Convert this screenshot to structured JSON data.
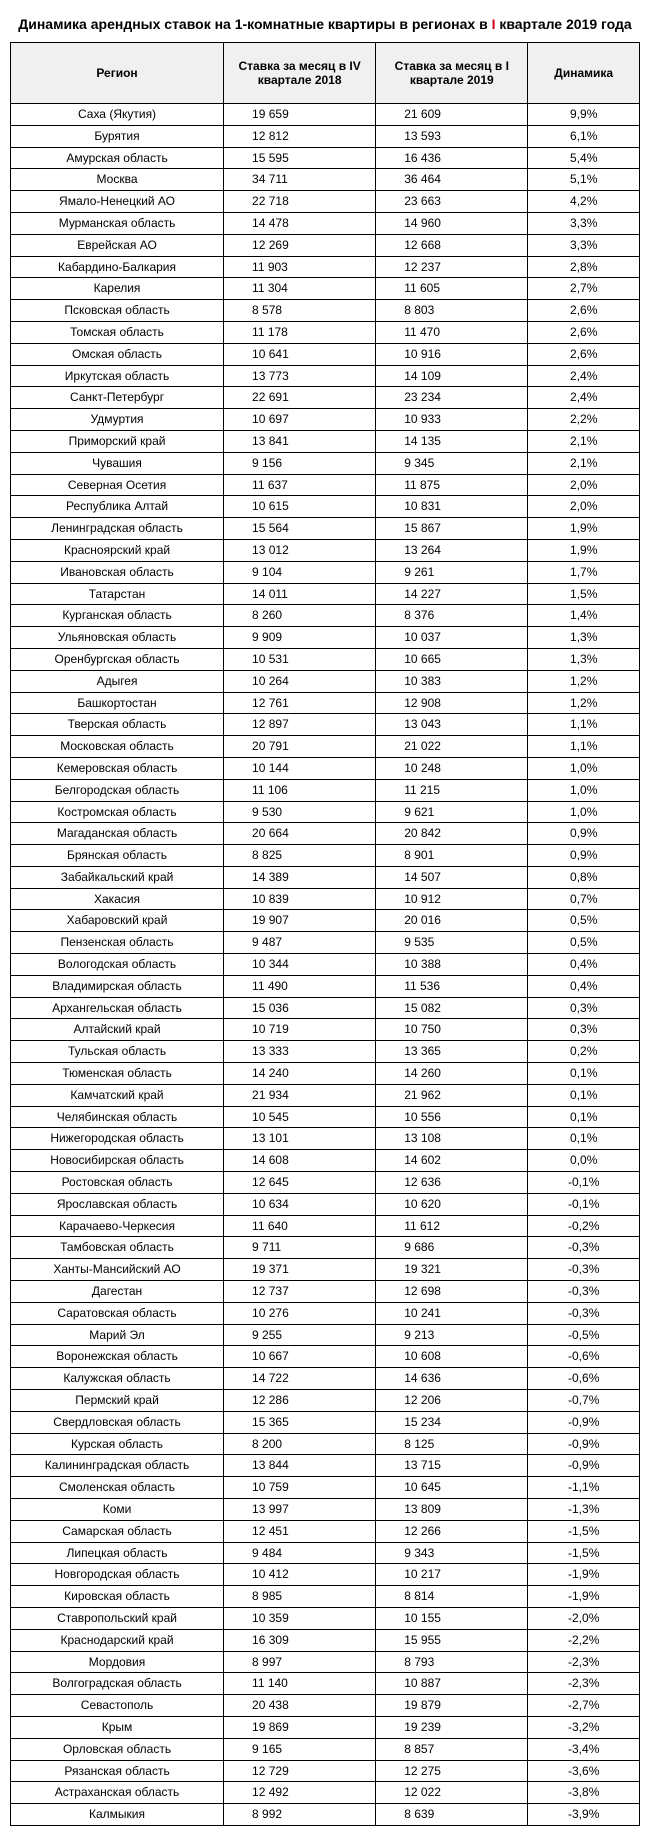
{
  "title_before": "Динамика арендных ставок на 1-комнатные квартиры в регионах в ",
  "title_red": "I",
  "title_after": " квартале 2019 года",
  "columns": {
    "region": "Регион",
    "q4": "Ставка за месяц в IV квартале 2018",
    "q1": "Ставка за месяц в I квартале 2019",
    "dyn": "Динамика"
  },
  "rows": [
    {
      "region": "Саха (Якутия)",
      "q4": "19 659",
      "q1": "21 609",
      "dyn": "9,9%"
    },
    {
      "region": "Бурятия",
      "q4": "12 812",
      "q1": "13 593",
      "dyn": "6,1%"
    },
    {
      "region": "Амурская область",
      "q4": "15 595",
      "q1": "16 436",
      "dyn": "5,4%"
    },
    {
      "region": "Москва",
      "q4": "34 711",
      "q1": "36 464",
      "dyn": "5,1%"
    },
    {
      "region": "Ямало-Ненецкий АО",
      "q4": "22 718",
      "q1": "23 663",
      "dyn": "4,2%"
    },
    {
      "region": "Мурманская область",
      "q4": "14 478",
      "q1": "14 960",
      "dyn": "3,3%"
    },
    {
      "region": "Еврейская АО",
      "q4": "12 269",
      "q1": "12 668",
      "dyn": "3,3%"
    },
    {
      "region": "Кабардино-Балкария",
      "q4": "11 903",
      "q1": "12 237",
      "dyn": "2,8%"
    },
    {
      "region": "Карелия",
      "q4": "11 304",
      "q1": "11 605",
      "dyn": "2,7%"
    },
    {
      "region": "Псковская область",
      "q4": "8 578",
      "q1": "8 803",
      "dyn": "2,6%"
    },
    {
      "region": "Томская область",
      "q4": "11 178",
      "q1": "11 470",
      "dyn": "2,6%"
    },
    {
      "region": "Омская область",
      "q4": "10 641",
      "q1": "10 916",
      "dyn": "2,6%"
    },
    {
      "region": "Иркутская область",
      "q4": "13 773",
      "q1": "14 109",
      "dyn": "2,4%"
    },
    {
      "region": "Санкт-Петербург",
      "q4": "22 691",
      "q1": "23 234",
      "dyn": "2,4%"
    },
    {
      "region": "Удмуртия",
      "q4": "10 697",
      "q1": "10 933",
      "dyn": "2,2%"
    },
    {
      "region": "Приморский край",
      "q4": "13 841",
      "q1": "14 135",
      "dyn": "2,1%"
    },
    {
      "region": "Чувашия",
      "q4": "9 156",
      "q1": "9 345",
      "dyn": "2,1%"
    },
    {
      "region": "Северная Осетия",
      "q4": "11 637",
      "q1": "11 875",
      "dyn": "2,0%"
    },
    {
      "region": "Республика Алтай",
      "q4": "10 615",
      "q1": "10 831",
      "dyn": "2,0%"
    },
    {
      "region": "Ленинградская область",
      "q4": "15 564",
      "q1": "15 867",
      "dyn": "1,9%"
    },
    {
      "region": "Красноярский край",
      "q4": "13 012",
      "q1": "13 264",
      "dyn": "1,9%"
    },
    {
      "region": "Ивановская область",
      "q4": "9 104",
      "q1": "9 261",
      "dyn": "1,7%"
    },
    {
      "region": "Татарстан",
      "q4": "14 011",
      "q1": "14 227",
      "dyn": "1,5%"
    },
    {
      "region": "Курганская область",
      "q4": "8 260",
      "q1": "8 376",
      "dyn": "1,4%"
    },
    {
      "region": "Ульяновская область",
      "q4": "9 909",
      "q1": "10 037",
      "dyn": "1,3%"
    },
    {
      "region": "Оренбургская область",
      "q4": "10 531",
      "q1": "10 665",
      "dyn": "1,3%"
    },
    {
      "region": "Адыгея",
      "q4": "10 264",
      "q1": "10 383",
      "dyn": "1,2%"
    },
    {
      "region": "Башкортостан",
      "q4": "12 761",
      "q1": "12 908",
      "dyn": "1,2%"
    },
    {
      "region": "Тверская область",
      "q4": "12 897",
      "q1": "13 043",
      "dyn": "1,1%"
    },
    {
      "region": "Московская область",
      "q4": "20 791",
      "q1": "21 022",
      "dyn": "1,1%"
    },
    {
      "region": "Кемеровская область",
      "q4": "10 144",
      "q1": "10 248",
      "dyn": "1,0%"
    },
    {
      "region": "Белгородская область",
      "q4": "11 106",
      "q1": "11 215",
      "dyn": "1,0%"
    },
    {
      "region": "Костромская область",
      "q4": "9 530",
      "q1": "9 621",
      "dyn": "1,0%"
    },
    {
      "region": "Магаданская область",
      "q4": "20 664",
      "q1": "20 842",
      "dyn": "0,9%"
    },
    {
      "region": "Брянская область",
      "q4": "8 825",
      "q1": "8 901",
      "dyn": "0,9%"
    },
    {
      "region": "Забайкальский край",
      "q4": "14 389",
      "q1": "14 507",
      "dyn": "0,8%"
    },
    {
      "region": "Хакасия",
      "q4": "10 839",
      "q1": "10 912",
      "dyn": "0,7%"
    },
    {
      "region": "Хабаровский край",
      "q4": "19 907",
      "q1": "20 016",
      "dyn": "0,5%"
    },
    {
      "region": "Пензенская область",
      "q4": "9 487",
      "q1": "9 535",
      "dyn": "0,5%"
    },
    {
      "region": "Вологодская область",
      "q4": "10 344",
      "q1": "10 388",
      "dyn": "0,4%"
    },
    {
      "region": "Владимирская область",
      "q4": "11 490",
      "q1": "11 536",
      "dyn": "0,4%"
    },
    {
      "region": "Архангельская область",
      "q4": "15 036",
      "q1": "15 082",
      "dyn": "0,3%"
    },
    {
      "region": "Алтайский край",
      "q4": "10 719",
      "q1": "10 750",
      "dyn": "0,3%"
    },
    {
      "region": "Тульская область",
      "q4": "13 333",
      "q1": "13 365",
      "dyn": "0,2%"
    },
    {
      "region": "Тюменская область",
      "q4": "14 240",
      "q1": "14 260",
      "dyn": "0,1%"
    },
    {
      "region": "Камчатский край",
      "q4": "21 934",
      "q1": "21 962",
      "dyn": "0,1%"
    },
    {
      "region": "Челябинская область",
      "q4": "10 545",
      "q1": "10 556",
      "dyn": "0,1%"
    },
    {
      "region": "Нижегородская область",
      "q4": "13 101",
      "q1": "13 108",
      "dyn": "0,1%"
    },
    {
      "region": "Новосибирская область",
      "q4": "14 608",
      "q1": "14 602",
      "dyn": "0,0%"
    },
    {
      "region": "Ростовская область",
      "q4": "12 645",
      "q1": "12 636",
      "dyn": "-0,1%"
    },
    {
      "region": "Ярославская область",
      "q4": "10 634",
      "q1": "10 620",
      "dyn": "-0,1%"
    },
    {
      "region": "Карачаево-Черкесия",
      "q4": "11 640",
      "q1": "11 612",
      "dyn": "-0,2%"
    },
    {
      "region": "Тамбовская область",
      "q4": "9 711",
      "q1": "9 686",
      "dyn": "-0,3%"
    },
    {
      "region": "Ханты-Мансийский АО",
      "q4": "19 371",
      "q1": "19 321",
      "dyn": "-0,3%"
    },
    {
      "region": "Дагестан",
      "q4": "12 737",
      "q1": "12 698",
      "dyn": "-0,3%"
    },
    {
      "region": "Саратовская область",
      "q4": "10 276",
      "q1": "10 241",
      "dyn": "-0,3%"
    },
    {
      "region": "Марий Эл",
      "q4": "9 255",
      "q1": "9 213",
      "dyn": "-0,5%"
    },
    {
      "region": "Воронежская область",
      "q4": "10 667",
      "q1": "10 608",
      "dyn": "-0,6%"
    },
    {
      "region": "Калужская область",
      "q4": "14 722",
      "q1": "14 636",
      "dyn": "-0,6%"
    },
    {
      "region": "Пермский край",
      "q4": "12 286",
      "q1": "12 206",
      "dyn": "-0,7%"
    },
    {
      "region": "Свердловская область",
      "q4": "15 365",
      "q1": "15 234",
      "dyn": "-0,9%"
    },
    {
      "region": "Курская область",
      "q4": "8 200",
      "q1": "8 125",
      "dyn": "-0,9%"
    },
    {
      "region": "Калининградская область",
      "q4": "13 844",
      "q1": "13 715",
      "dyn": "-0,9%"
    },
    {
      "region": "Смоленская область",
      "q4": "10 759",
      "q1": "10 645",
      "dyn": "-1,1%"
    },
    {
      "region": "Коми",
      "q4": "13 997",
      "q1": "13 809",
      "dyn": "-1,3%"
    },
    {
      "region": "Самарская область",
      "q4": "12 451",
      "q1": "12 266",
      "dyn": "-1,5%"
    },
    {
      "region": "Липецкая область",
      "q4": "9 484",
      "q1": "9 343",
      "dyn": "-1,5%"
    },
    {
      "region": "Новгородская область",
      "q4": "10 412",
      "q1": "10 217",
      "dyn": "-1,9%"
    },
    {
      "region": "Кировская область",
      "q4": "8 985",
      "q1": "8 814",
      "dyn": "-1,9%"
    },
    {
      "region": "Ставропольский край",
      "q4": "10 359",
      "q1": "10 155",
      "dyn": "-2,0%"
    },
    {
      "region": "Краснодарский край",
      "q4": "16 309",
      "q1": "15 955",
      "dyn": "-2,2%"
    },
    {
      "region": "Мордовия",
      "q4": "8 997",
      "q1": "8 793",
      "dyn": "-2,3%"
    },
    {
      "region": "Волгоградская область",
      "q4": "11 140",
      "q1": "10 887",
      "dyn": "-2,3%"
    },
    {
      "region": "Севастополь",
      "q4": "20 438",
      "q1": "19 879",
      "dyn": "-2,7%"
    },
    {
      "region": "Крым",
      "q4": "19 869",
      "q1": "19 239",
      "dyn": "-3,2%"
    },
    {
      "region": "Орловская область",
      "q4": "9 165",
      "q1": "8 857",
      "dyn": "-3,4%"
    },
    {
      "region": "Рязанская область",
      "q4": "12 729",
      "q1": "12 275",
      "dyn": "-3,6%"
    },
    {
      "region": "Астраханская область",
      "q4": "12 492",
      "q1": "12 022",
      "dyn": "-3,8%"
    },
    {
      "region": "Калмыкия",
      "q4": "8 992",
      "q1": "8 639",
      "dyn": "-3,9%"
    }
  ]
}
